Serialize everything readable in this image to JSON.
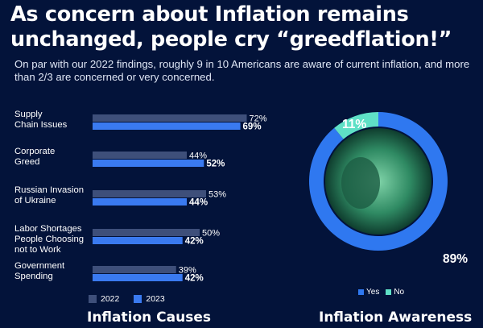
{
  "headline": "As concern about Inflation remains unchanged, people cry “greedflation!”",
  "subhead": "On par with our 2022 findings, roughly 9 in 10 Americans are aware of current inflation, and more than 2/3 are concerned or very concerned.",
  "colors": {
    "background": "#03133a",
    "bar_2022": "#3e4f7a",
    "bar_2023": "#3a7af0",
    "donut_yes": "#2f78f0",
    "donut_no": "#5fe0c6"
  },
  "chart_data": [
    {
      "type": "bar",
      "orientation": "horizontal",
      "title": "Inflation Causes",
      "categories": [
        "Supply Chain Issues",
        "Corporate Greed",
        "Russian Invasion of Ukraine",
        "Labor Shortages People Choosing not to Work",
        "Government Spending"
      ],
      "category_lines": [
        [
          "Supply",
          "Chain Issues"
        ],
        [
          "Corporate",
          "Greed"
        ],
        [
          "Russian Invasion",
          "of Ukraine"
        ],
        [
          "Labor Shortages",
          "People Choosing",
          "not to Work"
        ],
        [
          "Government",
          "Spending"
        ]
      ],
      "series": [
        {
          "name": "2022",
          "values": [
            72,
            44,
            53,
            50,
            39
          ],
          "labels": [
            "72%",
            "44%",
            "53%",
            "50%",
            "39%"
          ]
        },
        {
          "name": "2023",
          "values": [
            69,
            52,
            44,
            42,
            42
          ],
          "labels": [
            "69%",
            "52%",
            "44%",
            "42%",
            "42%"
          ]
        }
      ],
      "xlim": [
        0,
        100
      ],
      "legend_position": "bottom-left"
    },
    {
      "type": "pie",
      "style": "donut",
      "title": "Inflation Awareness",
      "categories": [
        "Yes",
        "No"
      ],
      "values": [
        89,
        11
      ],
      "labels": [
        "89%",
        "11%"
      ],
      "legend_position": "bottom"
    }
  ]
}
